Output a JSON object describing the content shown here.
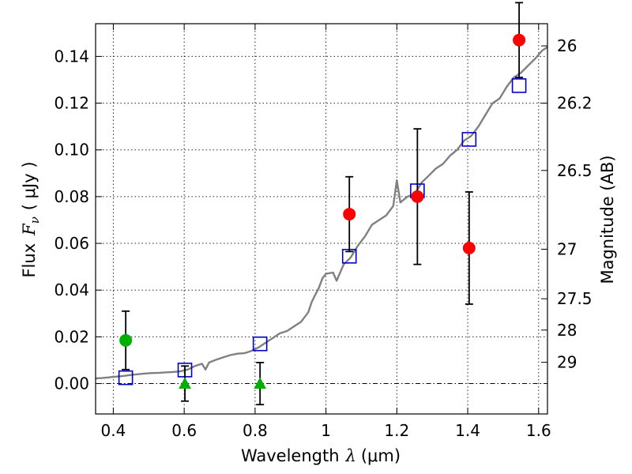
{
  "chart_data": {
    "type": "scatter",
    "title": "",
    "xlabel_text": "Wavelength",
    "xlabel_symbol": "λ",
    "xlabel_unit": "(μm)",
    "ylabel_text": "Flux",
    "ylabel_symbol": "F",
    "ylabel_subscript": "ν",
    "ylabel_unit": "( μJy )",
    "y2label": "Magnitude (AB)",
    "xlim": [
      0.35,
      1.625
    ],
    "ylim": [
      -0.013,
      0.154
    ],
    "x_ticks": [
      0.4,
      0.6,
      0.8,
      1.0,
      1.2,
      1.4,
      1.6
    ],
    "x_tick_labels": [
      "0.4",
      "0.6",
      "0.8",
      "1",
      "1.2",
      "1.4",
      "1.6"
    ],
    "y_ticks": [
      0.0,
      0.02,
      0.04,
      0.06,
      0.08,
      0.1,
      0.12,
      0.14
    ],
    "y_tick_labels": [
      "0.00",
      "0.02",
      "0.04",
      "0.06",
      "0.08",
      "0.10",
      "0.12",
      "0.14"
    ],
    "y2_ticks": [
      {
        "flux": 0.1445,
        "label": "26"
      },
      {
        "flux": 0.12,
        "label": "26.2"
      },
      {
        "flux": 0.0912,
        "label": "26.5"
      },
      {
        "flux": 0.0575,
        "label": "27"
      },
      {
        "flux": 0.0363,
        "label": "27.5"
      },
      {
        "flux": 0.0229,
        "label": "28"
      },
      {
        "flux": 0.0091,
        "label": "29"
      }
    ],
    "grid": true,
    "colors": {
      "model": "#808080",
      "detections": "#ff0000",
      "detection_green": "#00b000",
      "upper_limits": "#00b000",
      "model_points": "#0000cc",
      "errorbar": "#000000"
    },
    "series": [
      {
        "kind": "line",
        "points": [
          [
            0.35,
            0.0022
          ],
          [
            0.37,
            0.0024
          ],
          [
            0.39,
            0.0027
          ],
          [
            0.41,
            0.003
          ],
          [
            0.43,
            0.0033
          ],
          [
            0.45,
            0.0037
          ],
          [
            0.47,
            0.004
          ],
          [
            0.49,
            0.0043
          ],
          [
            0.51,
            0.0045
          ],
          [
            0.53,
            0.0046
          ],
          [
            0.55,
            0.0048
          ],
          [
            0.57,
            0.005
          ],
          [
            0.59,
            0.0053
          ],
          [
            0.61,
            0.006
          ],
          [
            0.63,
            0.0075
          ],
          [
            0.65,
            0.0085
          ],
          [
            0.66,
            0.006
          ],
          [
            0.67,
            0.009
          ],
          [
            0.69,
            0.0102
          ],
          [
            0.71,
            0.0112
          ],
          [
            0.73,
            0.0122
          ],
          [
            0.75,
            0.0128
          ],
          [
            0.77,
            0.013
          ],
          [
            0.79,
            0.014
          ],
          [
            0.81,
            0.0155
          ],
          [
            0.83,
            0.0175
          ],
          [
            0.85,
            0.0195
          ],
          [
            0.87,
            0.0215
          ],
          [
            0.89,
            0.0225
          ],
          [
            0.91,
            0.0245
          ],
          [
            0.93,
            0.0265
          ],
          [
            0.95,
            0.0305
          ],
          [
            0.96,
            0.035
          ],
          [
            0.97,
            0.038
          ],
          [
            0.98,
            0.041
          ],
          [
            0.99,
            0.045
          ],
          [
            1.0,
            0.047
          ],
          [
            1.02,
            0.0475
          ],
          [
            1.03,
            0.044
          ],
          [
            1.05,
            0.051
          ],
          [
            1.07,
            0.054
          ],
          [
            1.09,
            0.059
          ],
          [
            1.11,
            0.063
          ],
          [
            1.13,
            0.068
          ],
          [
            1.15,
            0.07
          ],
          [
            1.17,
            0.072
          ],
          [
            1.19,
            0.076
          ],
          [
            1.2,
            0.087
          ],
          [
            1.21,
            0.0775
          ],
          [
            1.23,
            0.08
          ],
          [
            1.25,
            0.081
          ],
          [
            1.27,
            0.086
          ],
          [
            1.29,
            0.089
          ],
          [
            1.31,
            0.092
          ],
          [
            1.33,
            0.094
          ],
          [
            1.35,
            0.0975
          ],
          [
            1.37,
            0.1
          ],
          [
            1.39,
            0.104
          ],
          [
            1.41,
            0.106
          ],
          [
            1.43,
            0.11
          ],
          [
            1.45,
            0.115
          ],
          [
            1.47,
            0.12
          ],
          [
            1.49,
            0.122
          ],
          [
            1.51,
            0.127
          ],
          [
            1.53,
            0.131
          ],
          [
            1.55,
            0.133
          ],
          [
            1.57,
            0.136
          ],
          [
            1.59,
            0.139
          ],
          [
            1.61,
            0.1425
          ],
          [
            1.625,
            0.144
          ]
        ]
      },
      {
        "kind": "model_points",
        "points": [
          [
            0.435,
            0.0025
          ],
          [
            0.602,
            0.0058
          ],
          [
            0.814,
            0.017
          ],
          [
            1.066,
            0.0545
          ],
          [
            1.258,
            0.0825
          ],
          [
            1.404,
            0.1045
          ],
          [
            1.545,
            0.1275
          ]
        ]
      },
      {
        "kind": "detections",
        "points": [
          {
            "x": 1.066,
            "y": 0.0725,
            "err": 0.016
          },
          {
            "x": 1.258,
            "y": 0.08,
            "err": 0.029
          },
          {
            "x": 1.404,
            "y": 0.058,
            "err": 0.024
          },
          {
            "x": 1.545,
            "y": 0.147,
            "err": 0.016
          }
        ]
      },
      {
        "kind": "detection_green",
        "points": [
          {
            "x": 0.435,
            "y": 0.0185,
            "err": 0.0125
          }
        ]
      },
      {
        "kind": "upper_limits",
        "points": [
          {
            "x": 0.602,
            "y": 0.0,
            "err": 0.0075
          },
          {
            "x": 0.814,
            "y": 0.0,
            "err": 0.009
          }
        ]
      }
    ]
  }
}
